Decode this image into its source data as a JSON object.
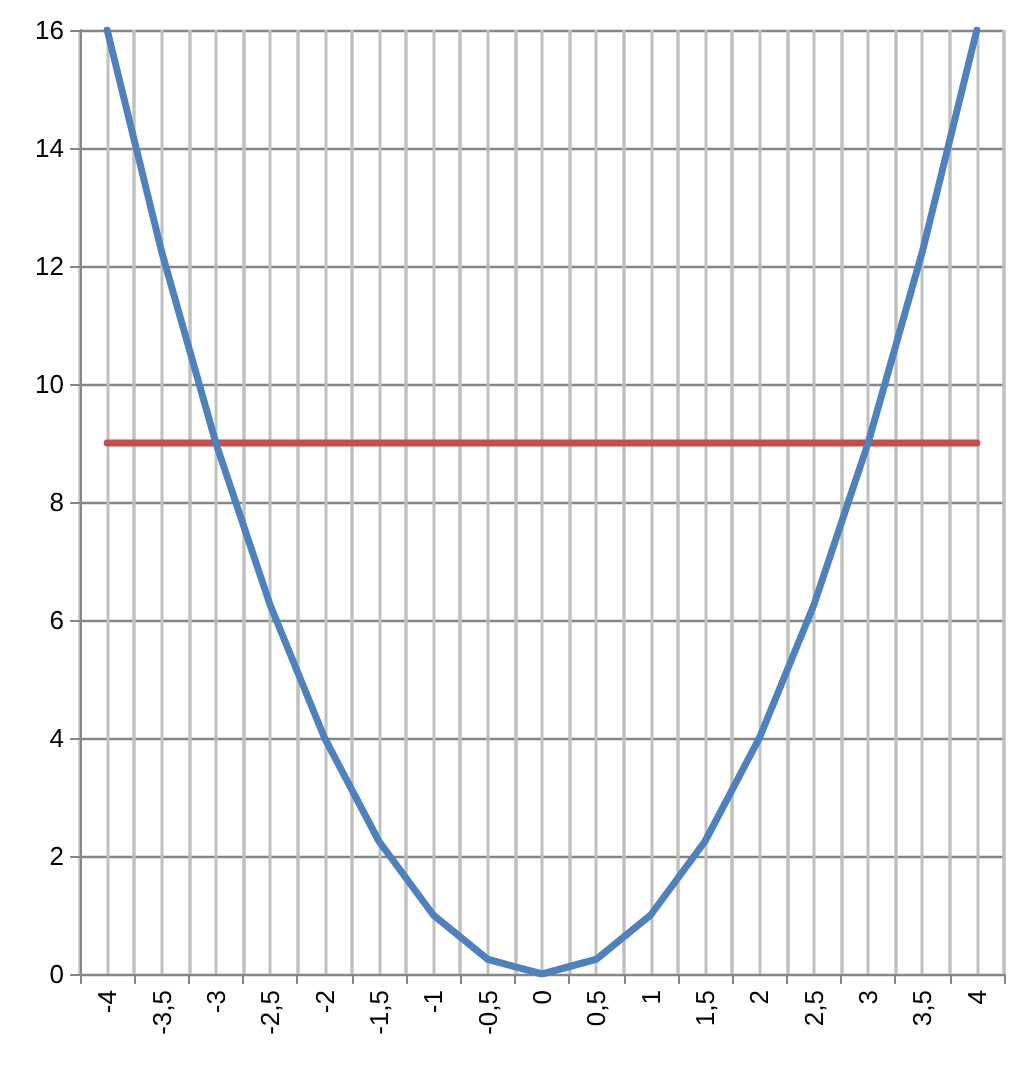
{
  "chart_data": {
    "type": "line",
    "categories": [
      "-4",
      "-3,5",
      "-3",
      "-2,5",
      "-2",
      "-1,5",
      "-1",
      "-0,5",
      "0",
      "0,5",
      "1",
      "1,5",
      "2",
      "2,5",
      "3",
      "3,5",
      "4"
    ],
    "series": [
      {
        "color": "#4f81bd",
        "values": [
          16,
          12.25,
          9,
          6.25,
          4,
          2.25,
          1,
          0.25,
          0,
          0.25,
          1,
          2.25,
          4,
          6.25,
          9,
          12.25,
          16
        ]
      },
      {
        "color": "#c0504d",
        "values": [
          9,
          9,
          9,
          9,
          9,
          9,
          9,
          9,
          9,
          9,
          9,
          9,
          9,
          9,
          9,
          9,
          9
        ]
      }
    ],
    "ylim": [
      0,
      16
    ],
    "yticks": [
      0,
      2,
      4,
      6,
      8,
      10,
      12,
      14,
      16
    ],
    "grid": true,
    "marker": "none",
    "line_style": "solid"
  }
}
